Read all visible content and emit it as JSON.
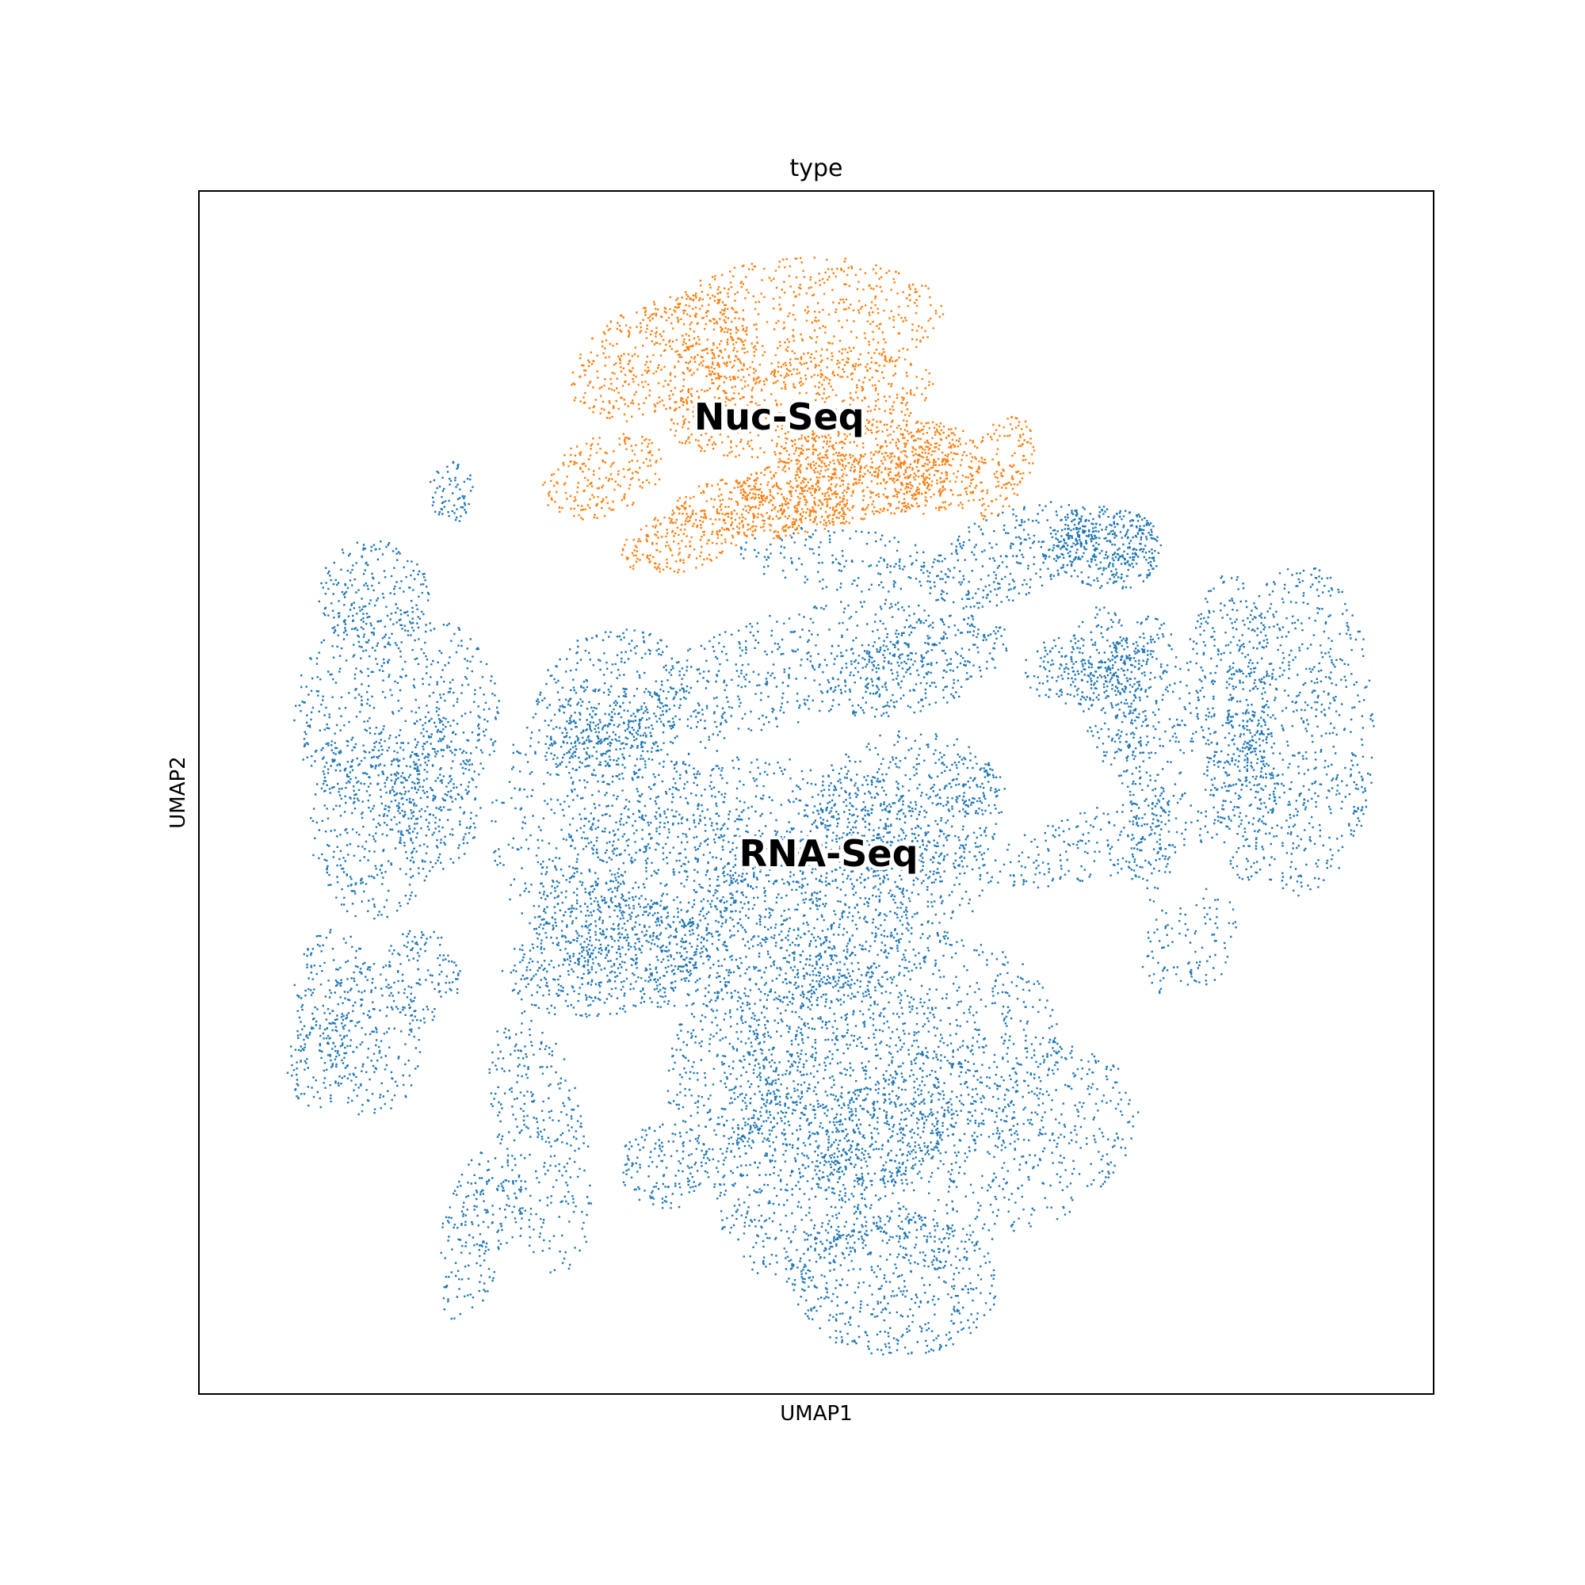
{
  "chart_data": {
    "type": "scatter",
    "title": "type",
    "xlabel": "UMAP1",
    "ylabel": "UMAP2",
    "xlim": [
      0,
      1
    ],
    "ylim": [
      0,
      1
    ],
    "grid": false,
    "ticks": false,
    "legend": "on data",
    "series": [
      {
        "name": "RNA-Seq",
        "color": "#1f77b4",
        "label_pos": [
          0.51,
          0.447
        ]
      },
      {
        "name": "Nuc-Seq",
        "color": "#ff7f0e",
        "label_pos": [
          0.47,
          0.81
        ]
      }
    ]
  }
}
